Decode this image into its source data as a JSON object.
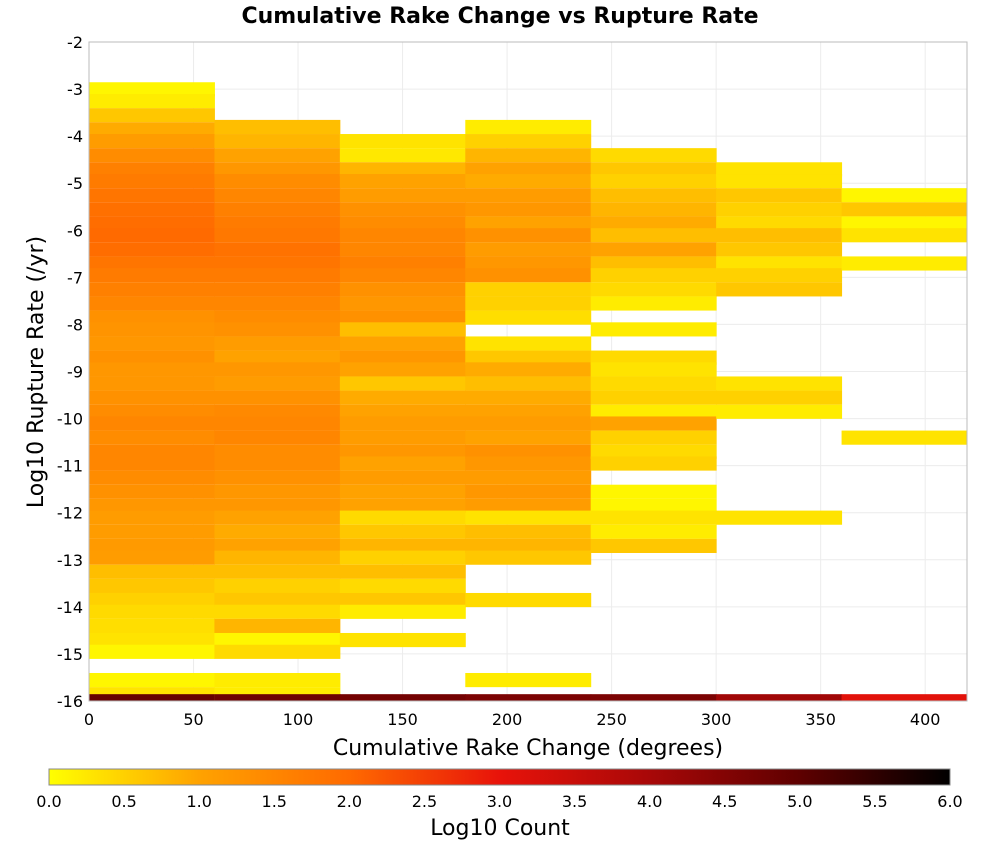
{
  "chart_data": {
    "type": "heatmap",
    "title": "Cumulative Rake Change vs Rupture Rate",
    "xlabel": "Cumulative Rake Change (degrees)",
    "ylabel": "Log10 Rupture Rate (/yr)",
    "xlim": [
      0,
      420
    ],
    "ylim": [
      -16,
      -2
    ],
    "x_ticks": [
      "0",
      "50",
      "100",
      "150",
      "200",
      "250",
      "300",
      "350",
      "400"
    ],
    "y_ticks": [
      "-2",
      "-3",
      "-4",
      "-5",
      "-6",
      "-7",
      "-8",
      "-9",
      "-10",
      "-11",
      "-12",
      "-13",
      "-14",
      "-15",
      "-16"
    ],
    "grid": true,
    "x_bin_width": 60,
    "y_bin_height": 0.29,
    "colorbar": {
      "label": "Log10 Count",
      "range": [
        0.0,
        6.0
      ],
      "ticks": [
        "0.0",
        "0.5",
        "1.0",
        "1.5",
        "2.0",
        "2.5",
        "3.0",
        "3.5",
        "4.0",
        "4.5",
        "5.0",
        "5.5",
        "6.0"
      ],
      "colors": [
        "#ffff00",
        "#ffa200",
        "#ff6a00",
        "#e8130a",
        "#a80808",
        "#5e0000",
        "#000000"
      ]
    },
    "columns": [
      {
        "x_start": 0,
        "x_end": 60,
        "cells": [
          [
            -3.0,
            0.1
          ],
          [
            -3.25,
            0.2
          ],
          [
            -3.55,
            0.6
          ],
          [
            -3.85,
            0.9
          ],
          [
            -4.1,
            1.1
          ],
          [
            -4.4,
            1.4
          ],
          [
            -4.7,
            1.6
          ],
          [
            -4.95,
            1.7
          ],
          [
            -5.25,
            1.8
          ],
          [
            -5.55,
            1.9
          ],
          [
            -5.85,
            1.95
          ],
          [
            -6.1,
            2.0
          ],
          [
            -6.4,
            1.95
          ],
          [
            -6.7,
            1.8
          ],
          [
            -6.95,
            1.7
          ],
          [
            -7.25,
            1.6
          ],
          [
            -7.55,
            1.5
          ],
          [
            -7.85,
            1.3
          ],
          [
            -8.1,
            1.25
          ],
          [
            -8.4,
            1.2
          ],
          [
            -8.7,
            1.3
          ],
          [
            -8.95,
            1.2
          ],
          [
            -9.25,
            1.2
          ],
          [
            -9.55,
            1.3
          ],
          [
            -9.85,
            1.4
          ],
          [
            -10.1,
            1.5
          ],
          [
            -10.4,
            1.4
          ],
          [
            -10.7,
            1.5
          ],
          [
            -10.95,
            1.5
          ],
          [
            -11.25,
            1.4
          ],
          [
            -11.55,
            1.3
          ],
          [
            -11.85,
            1.2
          ],
          [
            -12.1,
            1.1
          ],
          [
            -12.4,
            1.1
          ],
          [
            -12.7,
            1.15
          ],
          [
            -12.95,
            1.1
          ],
          [
            -13.25,
            0.7
          ],
          [
            -13.55,
            0.6
          ],
          [
            -13.85,
            0.5
          ],
          [
            -14.1,
            0.4
          ],
          [
            -14.4,
            0.35
          ],
          [
            -14.7,
            0.3
          ],
          [
            -14.95,
            0.1
          ],
          [
            -15.55,
            0.1
          ],
          [
            -15.85,
            0.3
          ],
          [
            -16.0,
            4.9
          ]
        ]
      },
      {
        "x_start": 60,
        "x_end": 120,
        "cells": [
          [
            -3.8,
            0.7
          ],
          [
            -4.1,
            0.8
          ],
          [
            -4.4,
            1.0
          ],
          [
            -4.7,
            1.2
          ],
          [
            -4.95,
            1.4
          ],
          [
            -5.25,
            1.5
          ],
          [
            -5.55,
            1.6
          ],
          [
            -5.85,
            1.7
          ],
          [
            -6.1,
            1.75
          ],
          [
            -6.4,
            1.85
          ],
          [
            -6.7,
            1.8
          ],
          [
            -6.95,
            1.7
          ],
          [
            -7.25,
            1.6
          ],
          [
            -7.55,
            1.5
          ],
          [
            -7.85,
            1.4
          ],
          [
            -8.1,
            1.3
          ],
          [
            -8.4,
            1.1
          ],
          [
            -8.7,
            1.0
          ],
          [
            -8.95,
            1.2
          ],
          [
            -9.25,
            1.1
          ],
          [
            -9.55,
            1.3
          ],
          [
            -9.85,
            1.45
          ],
          [
            -10.1,
            1.5
          ],
          [
            -10.4,
            1.5
          ],
          [
            -10.7,
            1.4
          ],
          [
            -10.95,
            1.4
          ],
          [
            -11.25,
            1.3
          ],
          [
            -11.55,
            1.2
          ],
          [
            -11.85,
            1.2
          ],
          [
            -12.1,
            1.0
          ],
          [
            -12.4,
            0.9
          ],
          [
            -12.7,
            1.0
          ],
          [
            -12.95,
            0.8
          ],
          [
            -13.25,
            0.7
          ],
          [
            -13.55,
            0.5
          ],
          [
            -13.85,
            0.6
          ],
          [
            -14.1,
            0.4
          ],
          [
            -14.4,
            0.8
          ],
          [
            -14.7,
            0.1
          ],
          [
            -14.95,
            0.4
          ],
          [
            -15.55,
            0.2
          ],
          [
            -15.85,
            0.2
          ],
          [
            -16.0,
            4.8
          ]
        ]
      },
      {
        "x_start": 120,
        "x_end": 180,
        "cells": [
          [
            -4.1,
            0.3
          ],
          [
            -4.4,
            0.25
          ],
          [
            -4.7,
            0.8
          ],
          [
            -4.95,
            1.0
          ],
          [
            -5.25,
            1.1
          ],
          [
            -5.55,
            1.3
          ],
          [
            -5.85,
            1.4
          ],
          [
            -6.1,
            1.5
          ],
          [
            -6.4,
            1.5
          ],
          [
            -6.7,
            1.6
          ],
          [
            -6.95,
            1.5
          ],
          [
            -7.25,
            1.3
          ],
          [
            -7.55,
            1.2
          ],
          [
            -7.85,
            1.3
          ],
          [
            -8.1,
            0.7
          ],
          [
            -8.4,
            1.0
          ],
          [
            -8.7,
            1.2
          ],
          [
            -8.95,
            1.0
          ],
          [
            -9.25,
            0.6
          ],
          [
            -9.55,
            0.9
          ],
          [
            -9.85,
            1.0
          ],
          [
            -10.1,
            1.1
          ],
          [
            -10.4,
            1.1
          ],
          [
            -10.7,
            1.2
          ],
          [
            -10.95,
            1.0
          ],
          [
            -11.25,
            1.1
          ],
          [
            -11.55,
            1.0
          ],
          [
            -11.85,
            1.0
          ],
          [
            -12.1,
            0.4
          ],
          [
            -12.4,
            0.6
          ],
          [
            -12.7,
            0.8
          ],
          [
            -12.95,
            0.5
          ],
          [
            -13.25,
            0.7
          ],
          [
            -13.55,
            0.4
          ],
          [
            -13.85,
            0.6
          ],
          [
            -14.1,
            0.2
          ],
          [
            -14.7,
            0.3
          ],
          [
            -16.0,
            4.7
          ]
        ]
      },
      {
        "x_start": 180,
        "x_end": 240,
        "cells": [
          [
            -3.8,
            0.2
          ],
          [
            -4.1,
            0.5
          ],
          [
            -4.4,
            0.8
          ],
          [
            -4.7,
            1.0
          ],
          [
            -4.95,
            0.9
          ],
          [
            -5.25,
            1.1
          ],
          [
            -5.55,
            1.2
          ],
          [
            -5.85,
            1.0
          ],
          [
            -6.1,
            1.3
          ],
          [
            -6.4,
            1.1
          ],
          [
            -6.7,
            1.2
          ],
          [
            -6.95,
            1.3
          ],
          [
            -7.25,
            0.5
          ],
          [
            -7.55,
            0.5
          ],
          [
            -7.85,
            0.35
          ],
          [
            -8.4,
            0.3
          ],
          [
            -8.7,
            0.6
          ],
          [
            -8.95,
            0.9
          ],
          [
            -9.25,
            0.7
          ],
          [
            -9.55,
            0.9
          ],
          [
            -9.85,
            1.0
          ],
          [
            -10.1,
            1.1
          ],
          [
            -10.4,
            1.0
          ],
          [
            -10.7,
            1.3
          ],
          [
            -10.95,
            1.2
          ],
          [
            -11.25,
            1.1
          ],
          [
            -11.55,
            1.2
          ],
          [
            -11.85,
            1.1
          ],
          [
            -12.1,
            0.3
          ],
          [
            -12.4,
            0.7
          ],
          [
            -12.7,
            0.8
          ],
          [
            -12.95,
            0.6
          ],
          [
            -13.85,
            0.4
          ],
          [
            -15.55,
            0.2
          ],
          [
            -16.0,
            4.6
          ]
        ]
      },
      {
        "x_start": 240,
        "x_end": 300,
        "cells": [
          [
            -4.4,
            0.4
          ],
          [
            -4.7,
            0.6
          ],
          [
            -4.95,
            0.5
          ],
          [
            -5.25,
            0.7
          ],
          [
            -5.55,
            0.8
          ],
          [
            -5.85,
            0.9
          ],
          [
            -6.1,
            0.7
          ],
          [
            -6.4,
            1.0
          ],
          [
            -6.7,
            0.7
          ],
          [
            -6.95,
            0.5
          ],
          [
            -7.25,
            0.4
          ],
          [
            -7.55,
            0.2
          ],
          [
            -8.1,
            0.2
          ],
          [
            -8.7,
            0.4
          ],
          [
            -8.95,
            0.3
          ],
          [
            -9.25,
            0.4
          ],
          [
            -9.55,
            0.5
          ],
          [
            -9.85,
            0.2
          ],
          [
            -10.1,
            1.0
          ],
          [
            -10.4,
            0.5
          ],
          [
            -10.7,
            0.4
          ],
          [
            -10.95,
            0.5
          ],
          [
            -11.55,
            0.1
          ],
          [
            -11.85,
            0.1
          ],
          [
            -12.1,
            0.3
          ],
          [
            -12.4,
            0.2
          ],
          [
            -12.7,
            0.6
          ],
          [
            -16.0,
            4.6
          ]
        ]
      },
      {
        "x_start": 300,
        "x_end": 360,
        "cells": [
          [
            -4.7,
            0.3
          ],
          [
            -4.95,
            0.3
          ],
          [
            -5.25,
            0.6
          ],
          [
            -5.55,
            0.5
          ],
          [
            -5.85,
            0.4
          ],
          [
            -6.1,
            0.7
          ],
          [
            -6.4,
            0.6
          ],
          [
            -6.7,
            0.3
          ],
          [
            -6.95,
            0.5
          ],
          [
            -7.25,
            0.6
          ],
          [
            -9.25,
            0.3
          ],
          [
            -9.55,
            0.5
          ],
          [
            -9.85,
            0.2
          ],
          [
            -12.1,
            0.3
          ],
          [
            -16.0,
            4.1
          ]
        ]
      },
      {
        "x_start": 360,
        "x_end": 420,
        "cells": [
          [
            -5.25,
            0.1
          ],
          [
            -5.55,
            0.6
          ],
          [
            -5.85,
            0.1
          ],
          [
            -6.1,
            0.3
          ],
          [
            -6.7,
            0.2
          ],
          [
            -10.4,
            0.3
          ],
          [
            -16.0,
            3.1
          ]
        ]
      }
    ]
  }
}
